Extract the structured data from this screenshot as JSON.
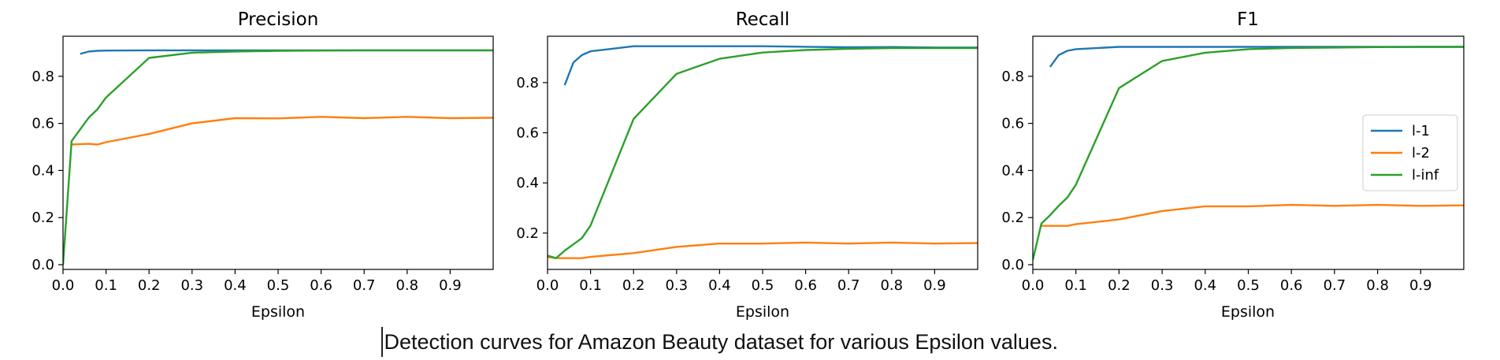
{
  "colors": {
    "l1": "#1f77b4",
    "l2": "#ff7f0e",
    "linf": "#2ca02c"
  },
  "caption": "Detection curves for Amazon Beauty dataset for various Epsilon values.",
  "chart_data": [
    {
      "type": "line",
      "title": "Precision",
      "xlabel": "Epsilon",
      "ylabel": "",
      "xlim": [
        0,
        1.0
      ],
      "ylim": [
        -0.02,
        0.97
      ],
      "xticks": [
        0.0,
        0.1,
        0.2,
        0.3,
        0.4,
        0.5,
        0.6,
        0.7,
        0.8,
        0.9
      ],
      "xtick_labels": [
        "0.0",
        "0.1",
        "0.2",
        "0.3",
        "0.4",
        "0.5",
        "0.6",
        "0.7",
        "0.8",
        "0.9"
      ],
      "yticks": [
        0.0,
        0.2,
        0.4,
        0.6,
        0.8
      ],
      "ytick_labels": [
        "0.0",
        "0.2",
        "0.4",
        "0.6",
        "0.8"
      ],
      "grid": false,
      "series": [
        {
          "name": "l-1",
          "color_key": "l1",
          "x": [
            0.04,
            0.06,
            0.08,
            0.1,
            0.2,
            0.3,
            0.4,
            0.5,
            0.6,
            0.7,
            0.8,
            0.9,
            1.0
          ],
          "y": [
            0.895,
            0.905,
            0.908,
            0.909,
            0.91,
            0.91,
            0.91,
            0.91,
            0.91,
            0.91,
            0.91,
            0.91,
            0.91
          ]
        },
        {
          "name": "l-2",
          "color_key": "l2",
          "x": [
            0.02,
            0.04,
            0.06,
            0.08,
            0.1,
            0.2,
            0.3,
            0.4,
            0.5,
            0.6,
            0.7,
            0.8,
            0.9,
            1.0
          ],
          "y": [
            0.51,
            0.512,
            0.513,
            0.51,
            0.52,
            0.555,
            0.6,
            0.622,
            0.621,
            0.628,
            0.622,
            0.628,
            0.622,
            0.624
          ]
        },
        {
          "name": "l-inf",
          "color_key": "linf",
          "x": [
            0.0,
            0.02,
            0.06,
            0.08,
            0.1,
            0.2,
            0.3,
            0.4,
            0.5,
            0.6,
            0.7,
            0.8,
            0.9,
            1.0
          ],
          "y": [
            0.0,
            0.525,
            0.625,
            0.66,
            0.71,
            0.878,
            0.9,
            0.905,
            0.908,
            0.909,
            0.91,
            0.91,
            0.91,
            0.91
          ]
        }
      ]
    },
    {
      "type": "line",
      "title": "Recall",
      "xlabel": "Epsilon",
      "ylabel": "",
      "xlim": [
        0,
        1.0
      ],
      "ylim": [
        0.055,
        0.985
      ],
      "xticks": [
        0.0,
        0.1,
        0.2,
        0.3,
        0.4,
        0.5,
        0.6,
        0.7,
        0.8,
        0.9
      ],
      "xtick_labels": [
        "0.0",
        "0.1",
        "0.2",
        "0.3",
        "0.4",
        "0.5",
        "0.6",
        "0.7",
        "0.8",
        "0.9"
      ],
      "yticks": [
        0.2,
        0.4,
        0.6,
        0.8
      ],
      "ytick_labels": [
        "0.2",
        "0.4",
        "0.6",
        "0.8"
      ],
      "grid": false,
      "series": [
        {
          "name": "l-1",
          "color_key": "l1",
          "x": [
            0.04,
            0.06,
            0.08,
            0.1,
            0.2,
            0.3,
            0.4,
            0.5,
            0.6,
            0.7,
            0.8,
            0.9,
            1.0
          ],
          "y": [
            0.79,
            0.88,
            0.91,
            0.925,
            0.945,
            0.945,
            0.945,
            0.945,
            0.943,
            0.941,
            0.942,
            0.94,
            0.94
          ]
        },
        {
          "name": "l-2",
          "color_key": "l2",
          "x": [
            0.0,
            0.02,
            0.04,
            0.06,
            0.08,
            0.1,
            0.2,
            0.3,
            0.4,
            0.5,
            0.6,
            0.7,
            0.8,
            0.9,
            1.0
          ],
          "y": [
            0.105,
            0.1,
            0.1,
            0.1,
            0.1,
            0.105,
            0.12,
            0.145,
            0.158,
            0.158,
            0.162,
            0.158,
            0.162,
            0.158,
            0.16
          ]
        },
        {
          "name": "l-inf",
          "color_key": "linf",
          "x": [
            0.0,
            0.02,
            0.04,
            0.06,
            0.08,
            0.1,
            0.2,
            0.3,
            0.4,
            0.5,
            0.6,
            0.7,
            0.8,
            0.9,
            1.0
          ],
          "y": [
            0.11,
            0.1,
            0.13,
            0.155,
            0.18,
            0.23,
            0.655,
            0.835,
            0.895,
            0.92,
            0.93,
            0.935,
            0.938,
            0.938,
            0.938
          ]
        }
      ]
    },
    {
      "type": "line",
      "title": "F1",
      "xlabel": "Epsilon",
      "ylabel": "",
      "xlim": [
        0,
        1.0
      ],
      "ylim": [
        -0.02,
        0.97
      ],
      "xticks": [
        0.0,
        0.1,
        0.2,
        0.3,
        0.4,
        0.5,
        0.6,
        0.7,
        0.8,
        0.9
      ],
      "xtick_labels": [
        "0.0",
        "0.1",
        "0.2",
        "0.3",
        "0.4",
        "0.5",
        "0.6",
        "0.7",
        "0.8",
        "0.9"
      ],
      "yticks": [
        0.0,
        0.2,
        0.4,
        0.6,
        0.8
      ],
      "ytick_labels": [
        "0.0",
        "0.2",
        "0.4",
        "0.6",
        "0.8"
      ],
      "grid": false,
      "legend": {
        "position": "right",
        "entries": [
          "l-1",
          "l-2",
          "l-inf"
        ]
      },
      "series": [
        {
          "name": "l-1",
          "color_key": "l1",
          "x": [
            0.04,
            0.06,
            0.08,
            0.1,
            0.2,
            0.3,
            0.4,
            0.5,
            0.6,
            0.7,
            0.8,
            0.9,
            1.0
          ],
          "y": [
            0.84,
            0.89,
            0.908,
            0.915,
            0.925,
            0.925,
            0.925,
            0.925,
            0.925,
            0.925,
            0.925,
            0.925,
            0.925
          ]
        },
        {
          "name": "l-2",
          "color_key": "l2",
          "x": [
            0.02,
            0.04,
            0.06,
            0.08,
            0.1,
            0.2,
            0.3,
            0.4,
            0.5,
            0.6,
            0.7,
            0.8,
            0.9,
            1.0
          ],
          "y": [
            0.165,
            0.165,
            0.165,
            0.165,
            0.172,
            0.192,
            0.228,
            0.248,
            0.248,
            0.254,
            0.25,
            0.254,
            0.25,
            0.252
          ]
        },
        {
          "name": "l-inf",
          "color_key": "linf",
          "x": [
            0.0,
            0.02,
            0.04,
            0.06,
            0.08,
            0.1,
            0.2,
            0.3,
            0.4,
            0.5,
            0.6,
            0.7,
            0.8,
            0.9,
            1.0
          ],
          "y": [
            0.02,
            0.175,
            0.21,
            0.25,
            0.285,
            0.34,
            0.75,
            0.865,
            0.9,
            0.915,
            0.92,
            0.922,
            0.924,
            0.925,
            0.925
          ]
        }
      ]
    }
  ]
}
